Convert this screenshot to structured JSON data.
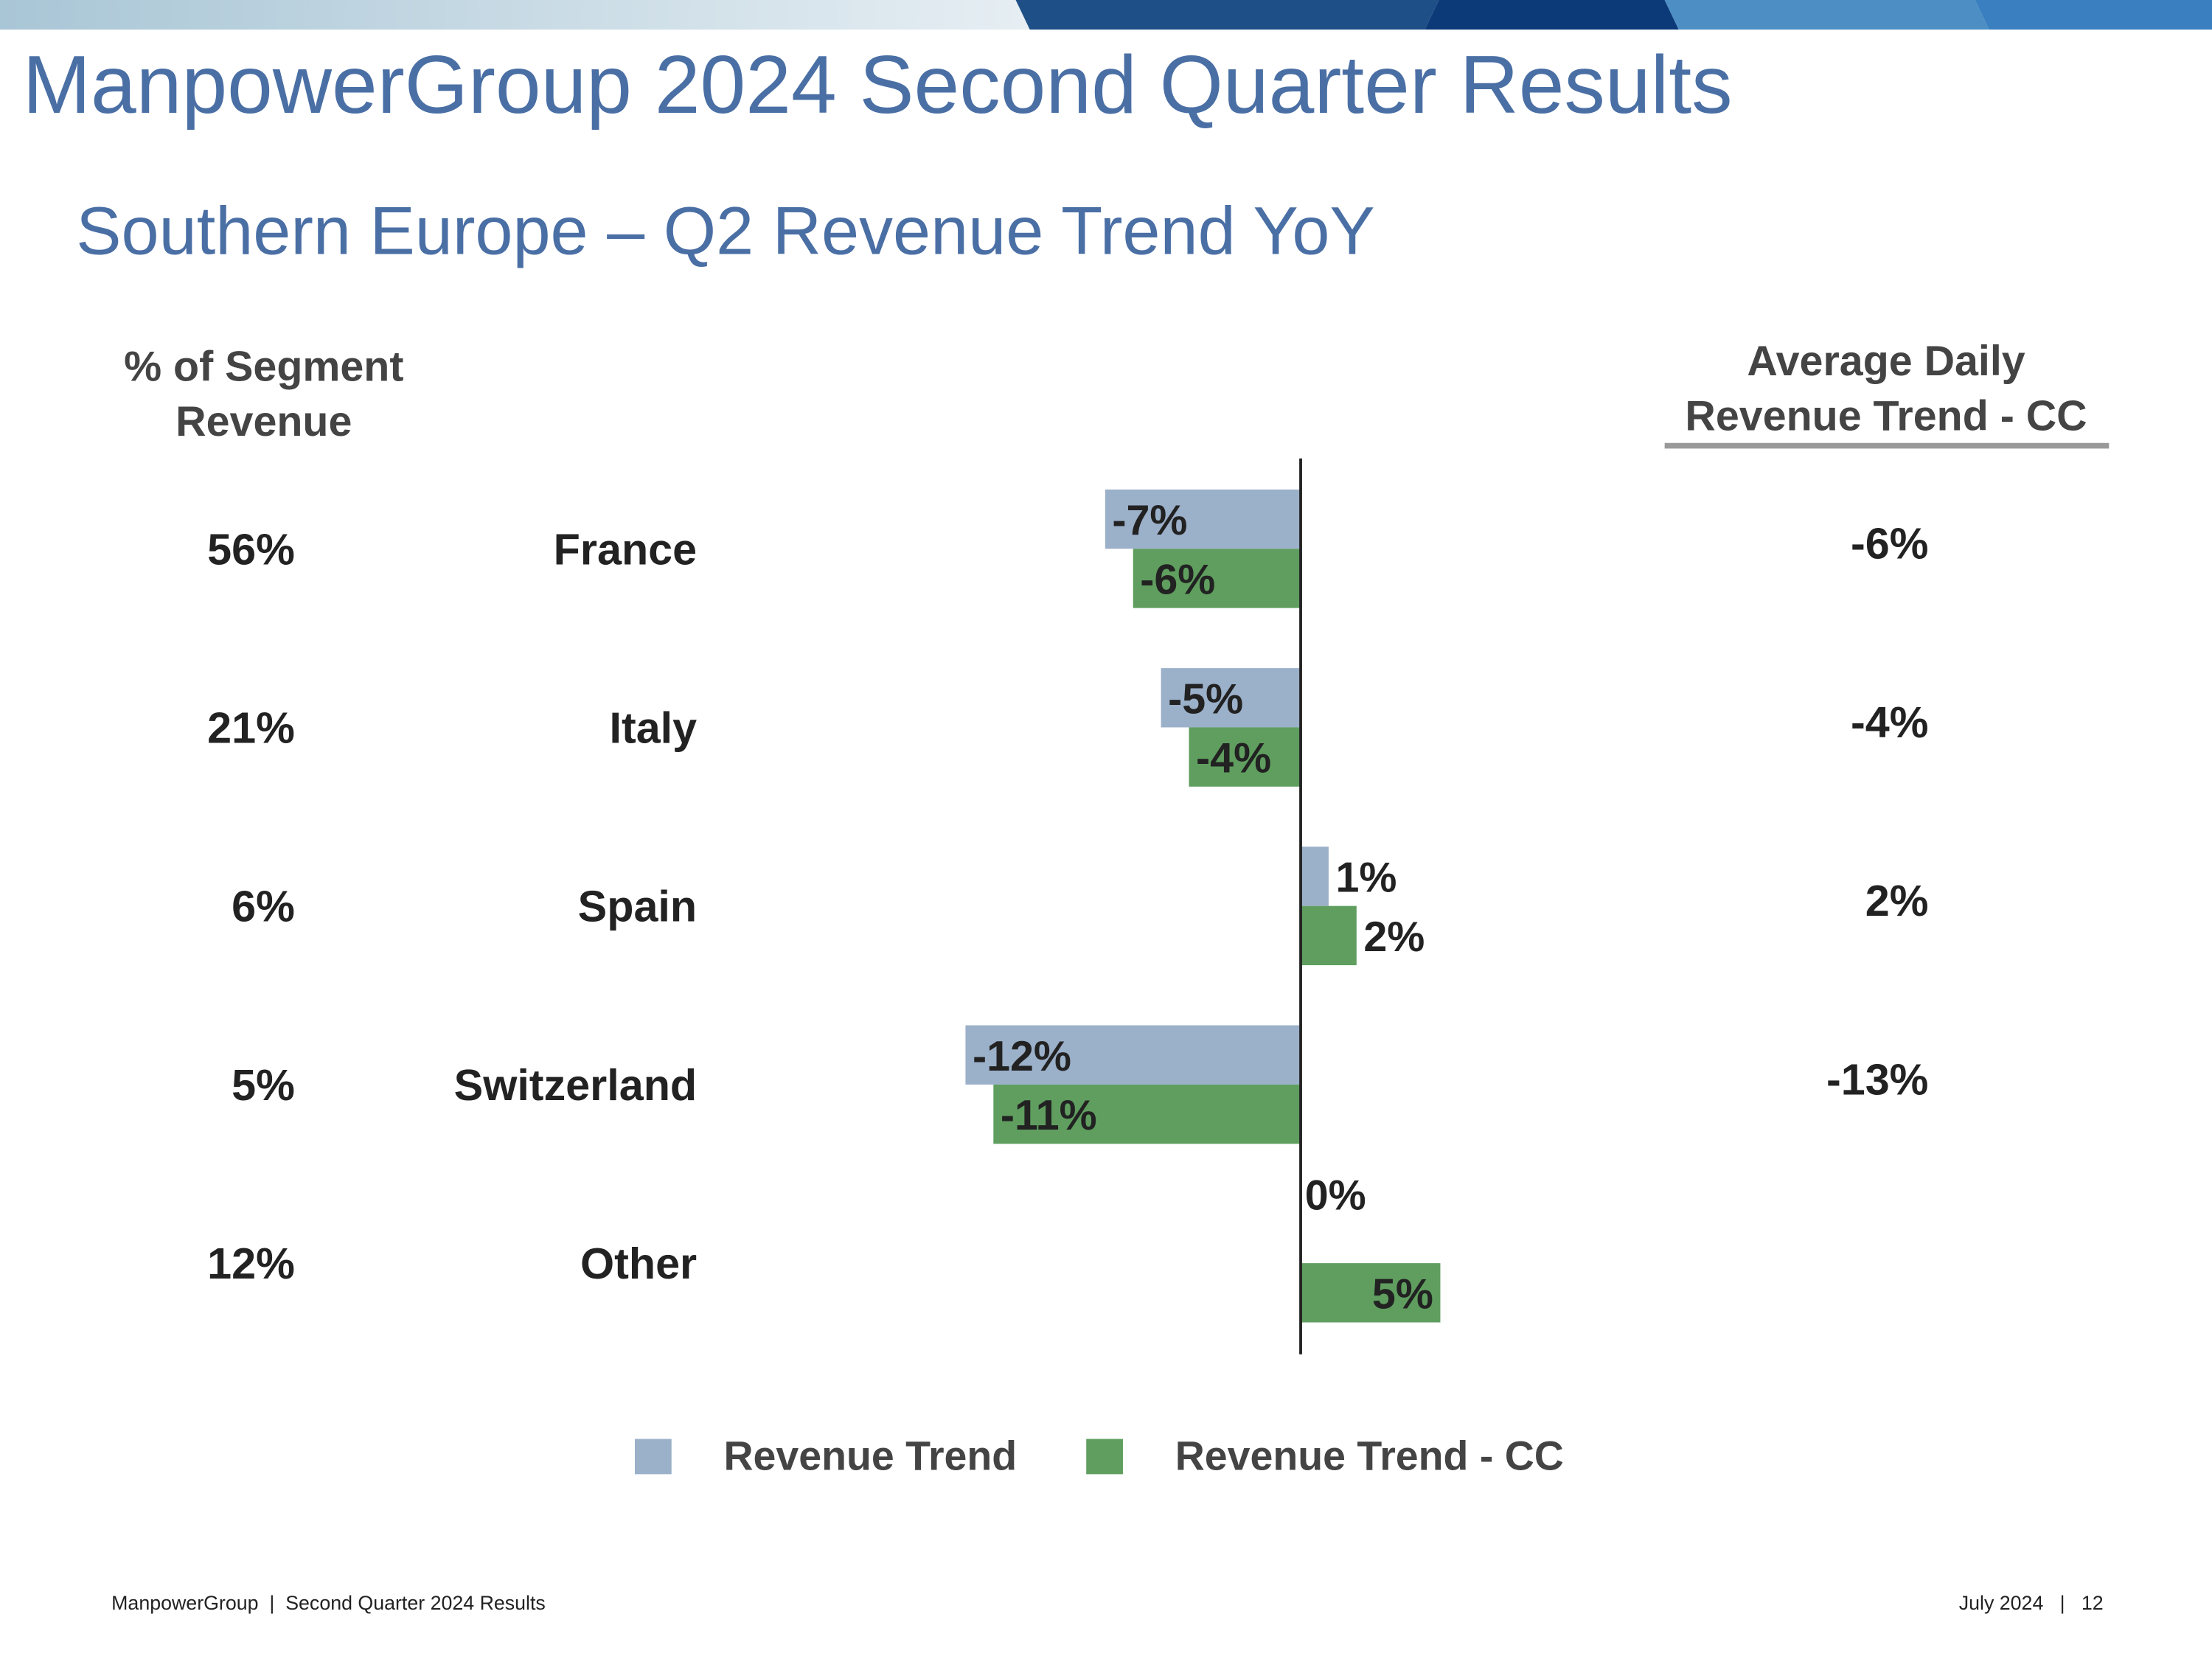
{
  "header": {
    "title": "ManpowerGroup 2024 Second Quarter Results"
  },
  "chart_data": {
    "type": "bar",
    "orientation": "horizontal",
    "title": "Southern Europe – Q2 Revenue Trend YoY",
    "categories": [
      "France",
      "Italy",
      "Spain",
      "Switzerland",
      "Other"
    ],
    "series": [
      {
        "name": "Revenue Trend",
        "color": "#9bb0c9",
        "values": [
          -7,
          -5,
          1,
          -12,
          0
        ],
        "value_labels": [
          "-7%",
          "-5%",
          "1%",
          "-12%",
          "0%"
        ]
      },
      {
        "name": "Revenue Trend - CC",
        "color": "#5f9e5f",
        "values": [
          -6,
          -4,
          2,
          -11,
          5
        ],
        "value_labels": [
          "-6%",
          "-4%",
          "2%",
          "-11%",
          "5%"
        ]
      }
    ],
    "xlim": [
      -15,
      10
    ],
    "share_column": {
      "header": [
        "% of Segment",
        "Revenue"
      ],
      "labels": [
        "56%",
        "21%",
        "6%",
        "5%",
        "12%"
      ]
    },
    "daily_column": {
      "header": [
        "Average Daily",
        "Revenue Trend - CC"
      ],
      "labels": [
        "-6%",
        "-4%",
        "2%",
        "-13%",
        null
      ]
    },
    "legend": "bottom"
  },
  "footer": {
    "left": "ManpowerGroup  |  Second Quarter 2024 Results",
    "right": "July 2024   |   12"
  }
}
